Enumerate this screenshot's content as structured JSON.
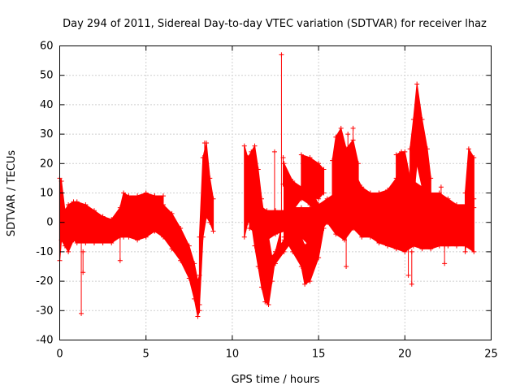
{
  "chart_data": {
    "type": "scatter",
    "title": "Day 294 of 2011, Sidereal Day-to-day VTEC variation (SDTVAR) for receiver lhaz",
    "xlabel": "GPS time / hours",
    "ylabel": "SDTVAR / TECUs",
    "xlim": [
      0,
      25
    ],
    "ylim": [
      -40,
      60
    ],
    "xticks": [
      "0",
      "5",
      "10",
      "15",
      "20",
      "25"
    ],
    "yticks": [
      "-40",
      "-30",
      "-20",
      "-10",
      "0",
      "10",
      "20",
      "30",
      "40",
      "50",
      "60"
    ],
    "grid": true,
    "marker": "+",
    "color": "#ff0000",
    "bands": [
      {
        "x": [
          0.0,
          0.1,
          0.3,
          0.5,
          0.8,
          1.0,
          1.5,
          2.0,
          2.5,
          3.0,
          3.5,
          3.7,
          4.0,
          4.5,
          5.0,
          5.5,
          6.0
        ],
        "lower": [
          -13,
          -6,
          -8,
          -10,
          -6,
          -7,
          -7,
          -7,
          -7,
          -7,
          -5,
          -5,
          -5,
          -6,
          -5,
          -3,
          -4
        ],
        "upper": [
          15,
          14,
          4,
          6,
          7,
          7,
          6,
          4,
          2,
          1,
          5,
          10,
          9,
          9,
          10,
          9,
          9
        ]
      },
      {
        "x": [
          5.5,
          6.0,
          6.5,
          7.0,
          7.5,
          7.8,
          8.0,
          8.1
        ],
        "lower": [
          -3,
          -5,
          -9,
          -13,
          -19,
          -26,
          -32,
          -30
        ],
        "upper": [
          9,
          6,
          3,
          -2,
          -8,
          -14,
          -20,
          -18
        ]
      },
      {
        "x": [
          8.1,
          8.3,
          8.5,
          8.7,
          8.9
        ],
        "lower": [
          -28,
          -5,
          2,
          0,
          -3
        ],
        "upper": [
          -5,
          22,
          27,
          15,
          8
        ]
      },
      {
        "x": [
          10.7,
          10.9,
          11.1,
          11.3,
          11.5,
          11.7,
          11.9,
          12.1,
          12.3,
          12.5,
          12.8
        ],
        "lower": [
          -5,
          0,
          0,
          -8,
          -15,
          -22,
          -27,
          -28,
          -20,
          -12,
          -8
        ],
        "upper": [
          26,
          22,
          24,
          26,
          18,
          8,
          0,
          -5,
          -12,
          -10,
          -3
        ]
      },
      {
        "x": [
          11.0,
          11.5,
          12.0,
          12.5,
          13.0,
          13.5,
          14.0,
          14.5,
          15.0,
          15.5,
          16.0,
          16.5,
          17.0,
          17.5,
          18.0,
          18.5,
          19.0,
          19.5,
          20.0,
          20.5,
          21.0,
          21.5,
          22.0,
          22.5,
          23.0,
          23.5,
          24.0
        ],
        "lower": [
          -2,
          -4,
          -6,
          -4,
          -3,
          -2,
          -5,
          -8,
          -4,
          0,
          -4,
          -6,
          -2,
          -5,
          -5,
          -7,
          -8,
          -9,
          -10,
          -8,
          -9,
          -9,
          -8,
          -8,
          -8,
          -8,
          -10
        ],
        "upper": [
          10,
          6,
          4,
          4,
          4,
          5,
          5,
          5,
          6,
          8,
          10,
          14,
          18,
          12,
          10,
          10,
          11,
          15,
          17,
          14,
          12,
          10,
          10,
          8,
          6,
          6,
          8
        ]
      },
      {
        "x": [
          13.0,
          13.5,
          14.0,
          14.2,
          14.5,
          15.0,
          15.3
        ],
        "lower": [
          -5,
          -10,
          -15,
          -21,
          -20,
          -12,
          -2
        ],
        "upper": [
          3,
          -2,
          -5,
          -8,
          -6,
          0,
          4
        ]
      },
      {
        "x": [
          12.0,
          12.5,
          13.0,
          13.5,
          14.0
        ],
        "lower": [
          -18,
          -14,
          -10,
          -6,
          -3
        ],
        "upper": [
          -14,
          -10,
          -6,
          -2,
          1
        ]
      },
      {
        "x": [
          13.0,
          13.5,
          14.0,
          14.5,
          15.0,
          15.5,
          16.0
        ],
        "lower": [
          2,
          4,
          8,
          6,
          2,
          0,
          -2
        ],
        "upper": [
          20,
          14,
          12,
          12,
          6,
          4,
          2
        ]
      },
      {
        "x": [
          14.0,
          14.5,
          15.0,
          15.3
        ],
        "lower": [
          10,
          9,
          8,
          10
        ],
        "upper": [
          23,
          22,
          20,
          18
        ]
      },
      {
        "x": [
          15.8,
          16.0,
          16.3,
          16.6,
          17.0,
          17.3
        ],
        "lower": [
          5,
          8,
          10,
          5,
          10,
          8
        ],
        "upper": [
          21,
          29,
          32,
          25,
          28,
          20
        ]
      },
      {
        "x": [
          19.5,
          19.8,
          20.0,
          20.3
        ],
        "lower": [
          8,
          10,
          10,
          5
        ],
        "upper": [
          23,
          24,
          24,
          15
        ]
      },
      {
        "x": [
          20.3,
          20.5,
          20.7,
          21.0,
          21.3,
          21.5
        ],
        "lower": [
          5,
          8,
          20,
          12,
          8,
          5
        ],
        "upper": [
          25,
          35,
          47,
          35,
          25,
          15
        ]
      },
      {
        "x": [
          23.5,
          23.7,
          24.0
        ],
        "lower": [
          -10,
          0,
          5
        ],
        "upper": [
          10,
          25,
          22
        ]
      }
    ],
    "spikes": [
      {
        "x": 1.25,
        "low": -31,
        "high": 0
      },
      {
        "x": 1.35,
        "low": -17,
        "high": -10
      },
      {
        "x": 12.85,
        "low": 0,
        "high": 57
      },
      {
        "x": 12.45,
        "low": 0,
        "high": 24
      },
      {
        "x": 12.95,
        "low": 13,
        "high": 22
      },
      {
        "x": 16.6,
        "low": -15,
        "high": 0
      },
      {
        "x": 16.7,
        "low": 0,
        "high": 30
      },
      {
        "x": 17.0,
        "low": 0,
        "high": 32
      },
      {
        "x": 20.4,
        "low": -21,
        "high": -10
      },
      {
        "x": 20.2,
        "low": -18,
        "high": 0
      },
      {
        "x": 22.1,
        "low": 0,
        "high": 12
      },
      {
        "x": 22.3,
        "low": -14,
        "high": -8
      },
      {
        "x": 3.5,
        "low": -13,
        "high": -5
      },
      {
        "x": 8.4,
        "low": 10,
        "high": 27
      },
      {
        "x": 18.4,
        "low": -6,
        "high": 2
      }
    ]
  }
}
